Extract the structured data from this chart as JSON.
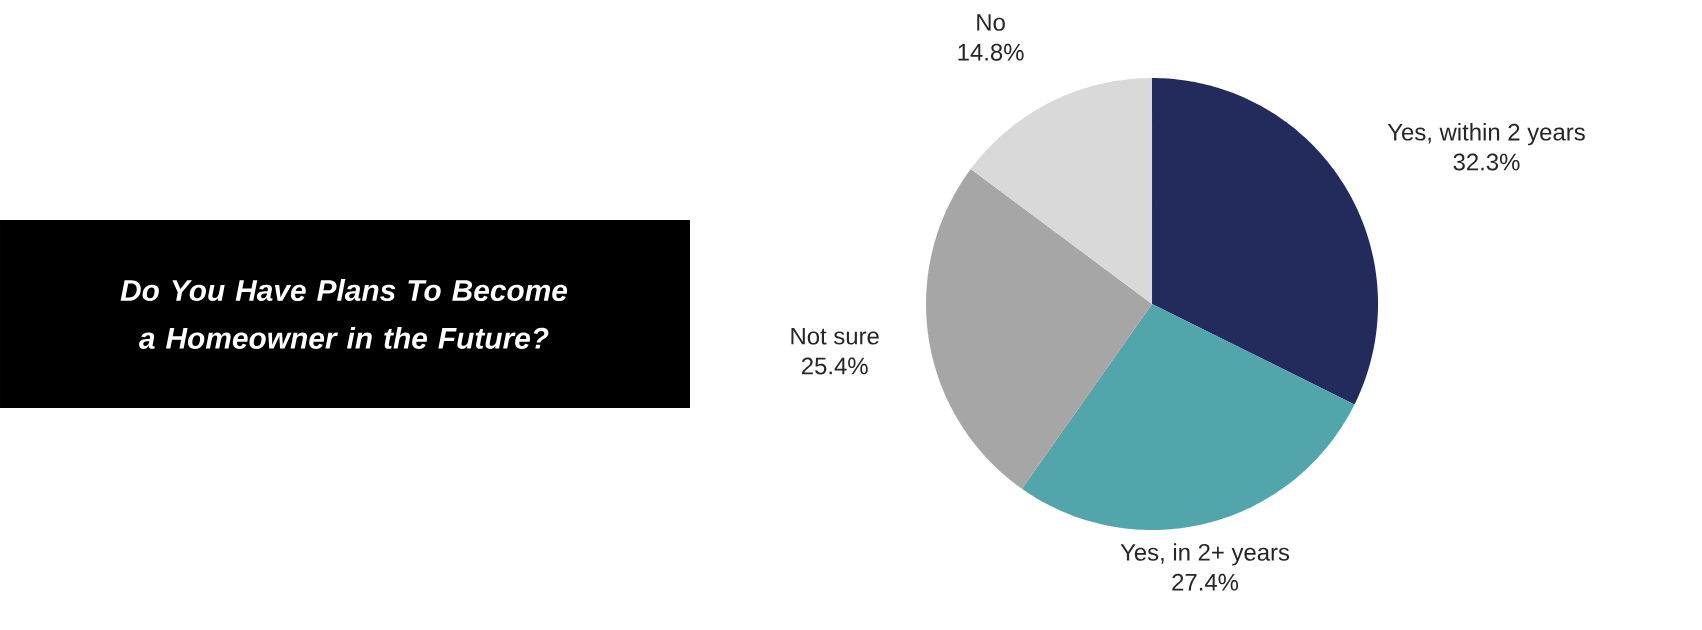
{
  "chart_data": {
    "type": "pie",
    "title": "Do You Have Plans To Become a Homeowner in the Future?",
    "categories": [
      "Yes, within 2 years",
      "Yes, in 2+ years",
      "Not sure",
      "No"
    ],
    "values": [
      32.3,
      27.4,
      25.4,
      14.8
    ],
    "value_labels": [
      "32.3%",
      "27.4%",
      "25.4%",
      "14.8%"
    ],
    "colors": [
      "#232a5c",
      "#52a5aa",
      "#a6a6a6",
      "#d9d9d9"
    ]
  }
}
